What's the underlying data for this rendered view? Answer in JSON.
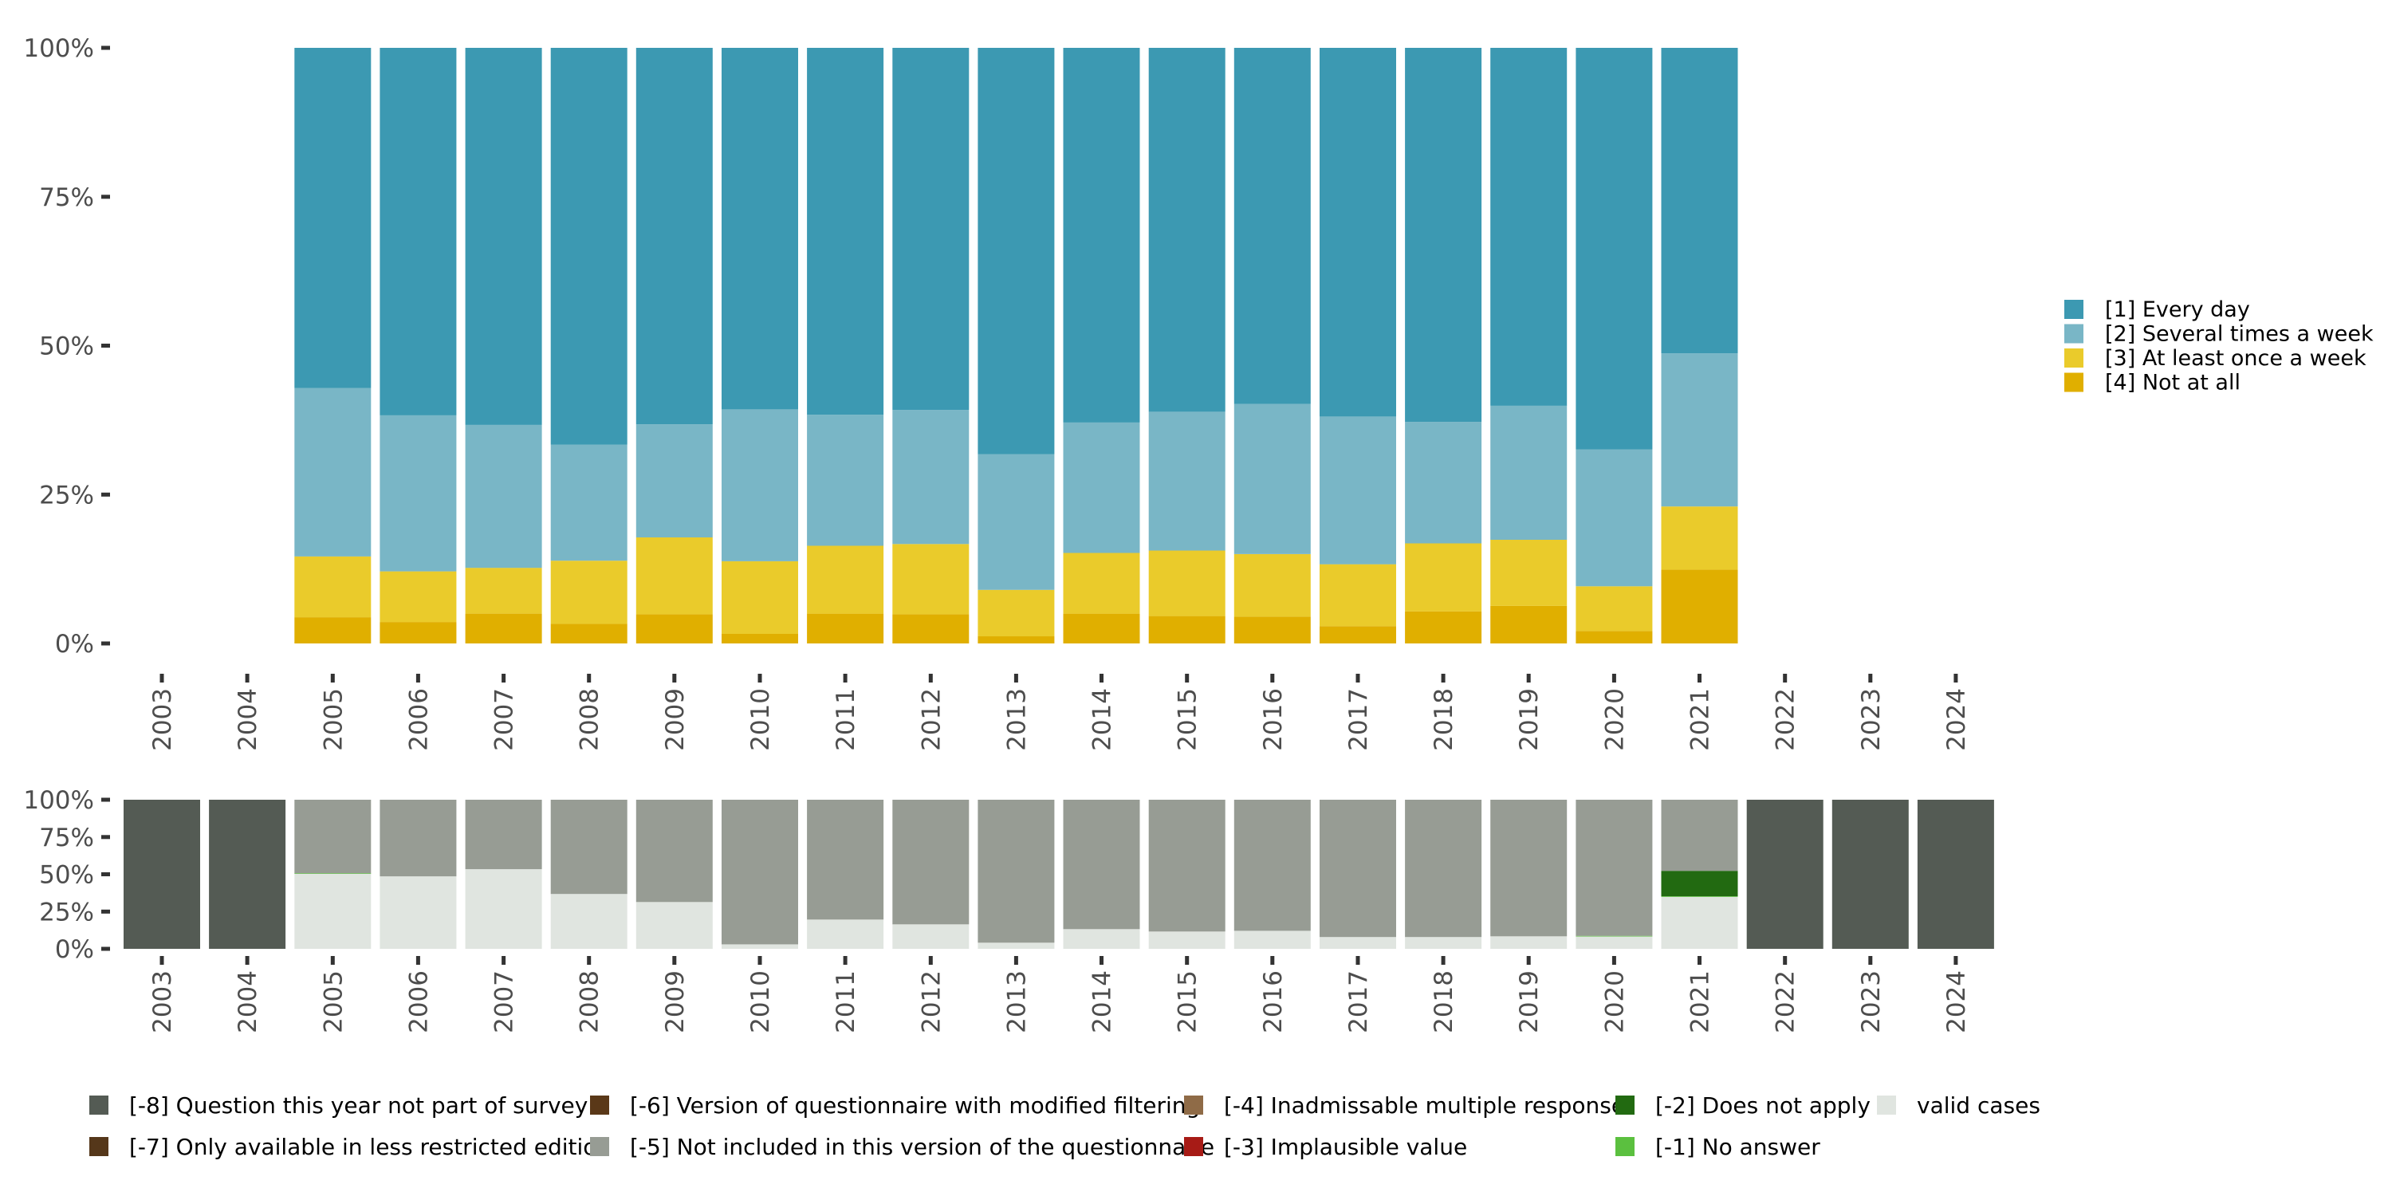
{
  "chart_data": [
    {
      "id": "main",
      "type": "bar",
      "stacked": true,
      "percent": true,
      "title": "",
      "xlabel": "",
      "ylabel": "",
      "ylim": [
        0,
        100
      ],
      "yticks": [
        "0%",
        "25%",
        "50%",
        "75%",
        "100%"
      ],
      "ytick_values": [
        0,
        25,
        50,
        75,
        100
      ],
      "categories": [
        "2003",
        "2004",
        "2005",
        "2006",
        "2007",
        "2008",
        "2009",
        "2010",
        "2011",
        "2012",
        "2013",
        "2014",
        "2015",
        "2016",
        "2017",
        "2018",
        "2019",
        "2020",
        "2021",
        "2022",
        "2023",
        "2024"
      ],
      "legend_position": "right",
      "series": [
        {
          "name": "[4] Not at all",
          "color": "#E0AF00",
          "values": [
            null,
            null,
            4.4,
            3.6,
            5.0,
            3.3,
            4.9,
            1.6,
            5.0,
            4.9,
            1.2,
            5.0,
            4.6,
            4.5,
            2.9,
            5.4,
            6.3,
            2.1,
            12.4,
            null,
            null,
            null
          ]
        },
        {
          "name": "[3] At least once a week",
          "color": "#EACB2B",
          "values": [
            null,
            null,
            10.2,
            8.5,
            7.7,
            10.6,
            12.9,
            12.2,
            11.4,
            11.8,
            7.8,
            10.2,
            11.0,
            10.5,
            10.4,
            11.4,
            11.1,
            7.5,
            10.6,
            null,
            null,
            null
          ]
        },
        {
          "name": "[2] Several times a week",
          "color": "#79B6C6",
          "values": [
            null,
            null,
            28.3,
            26.2,
            24.0,
            19.5,
            19.0,
            25.5,
            22.0,
            22.5,
            22.8,
            21.9,
            23.3,
            25.2,
            24.8,
            20.4,
            22.5,
            23.0,
            25.7,
            null,
            null,
            null
          ]
        },
        {
          "name": "[1] Every day",
          "color": "#3C99B2",
          "values": [
            null,
            null,
            57.1,
            61.7,
            63.3,
            66.6,
            63.2,
            60.7,
            61.6,
            60.8,
            68.2,
            62.9,
            61.1,
            59.8,
            61.9,
            62.8,
            60.1,
            67.4,
            51.3,
            null,
            null,
            null
          ]
        }
      ],
      "legend": [
        {
          "label": "[1] Every day",
          "color": "#3C99B2"
        },
        {
          "label": "[2] Several times a week",
          "color": "#79B6C6"
        },
        {
          "label": "[3] At least once a week",
          "color": "#EACB2B"
        },
        {
          "label": "[4] Not at all",
          "color": "#E0AF00"
        }
      ]
    },
    {
      "id": "missing",
      "type": "bar",
      "stacked": true,
      "percent": true,
      "title": "",
      "xlabel": "",
      "ylabel": "",
      "ylim": [
        0,
        100
      ],
      "yticks": [
        "0%",
        "25%",
        "50%",
        "75%",
        "100%"
      ],
      "ytick_values": [
        0,
        25,
        50,
        75,
        100
      ],
      "categories": [
        "2003",
        "2004",
        "2005",
        "2006",
        "2007",
        "2008",
        "2009",
        "2010",
        "2011",
        "2012",
        "2013",
        "2014",
        "2015",
        "2016",
        "2017",
        "2018",
        "2019",
        "2020",
        "2021",
        "2022",
        "2023",
        "2024"
      ],
      "legend_position": "bottom",
      "series": [
        {
          "name": "valid cases",
          "color": "#E0E5E0",
          "values": [
            0,
            0,
            50.4,
            48.6,
            53.4,
            36.8,
            31.4,
            3.0,
            19.6,
            16.4,
            4.1,
            13.2,
            11.6,
            12.1,
            7.9,
            7.9,
            8.4,
            8.4,
            35.0,
            0,
            0,
            0
          ]
        },
        {
          "name": "[-1] No answer",
          "color": "#5BC03F",
          "values": [
            0,
            0,
            0.3,
            0,
            0,
            0,
            0,
            0,
            0,
            0,
            0,
            0,
            0,
            0,
            0,
            0,
            0,
            0.3,
            0.3,
            0,
            0,
            0
          ]
        },
        {
          "name": "[-2] Does not apply",
          "color": "#226A11",
          "values": [
            0,
            0,
            0,
            0,
            0,
            0,
            0,
            0,
            0,
            0,
            0,
            0,
            0,
            0,
            0,
            0,
            0,
            0,
            17.0,
            0,
            0,
            0
          ]
        },
        {
          "name": "[-5] Not included in this version of the questionnaire",
          "color": "#979C94",
          "values": [
            0,
            0,
            49.3,
            51.4,
            46.6,
            63.2,
            68.6,
            97.0,
            80.4,
            83.6,
            95.9,
            86.8,
            88.4,
            87.9,
            92.1,
            92.1,
            91.6,
            91.3,
            47.7,
            0,
            0,
            0
          ]
        },
        {
          "name": "[-8] Question this year not part of survey",
          "color": "#545B54",
          "values": [
            100,
            100,
            0,
            0,
            0,
            0,
            0,
            0,
            0,
            0,
            0,
            0,
            0,
            0,
            0,
            0,
            0,
            0,
            0,
            100,
            100,
            100
          ]
        }
      ],
      "legend": [
        {
          "label": "[-8] Question this year not part of survey",
          "color": "#545B54"
        },
        {
          "label": "[-7] Only available in less restricted edition",
          "color": "#55371A"
        },
        {
          "label": "[-6] Version of questionnaire with modified filtering",
          "color": "#5A3818"
        },
        {
          "label": "[-5] Not included in this version of the questionnaire",
          "color": "#979C94"
        },
        {
          "label": "[-4] Inadmissable multiple response",
          "color": "#8F6B47"
        },
        {
          "label": "[-3] Implausible value",
          "color": "#A71B16"
        },
        {
          "label": "[-2] Does not apply",
          "color": "#226A11"
        },
        {
          "label": "[-1] No answer",
          "color": "#5BC03F"
        },
        {
          "label": "valid cases",
          "color": "#E0E5E0"
        }
      ]
    }
  ]
}
